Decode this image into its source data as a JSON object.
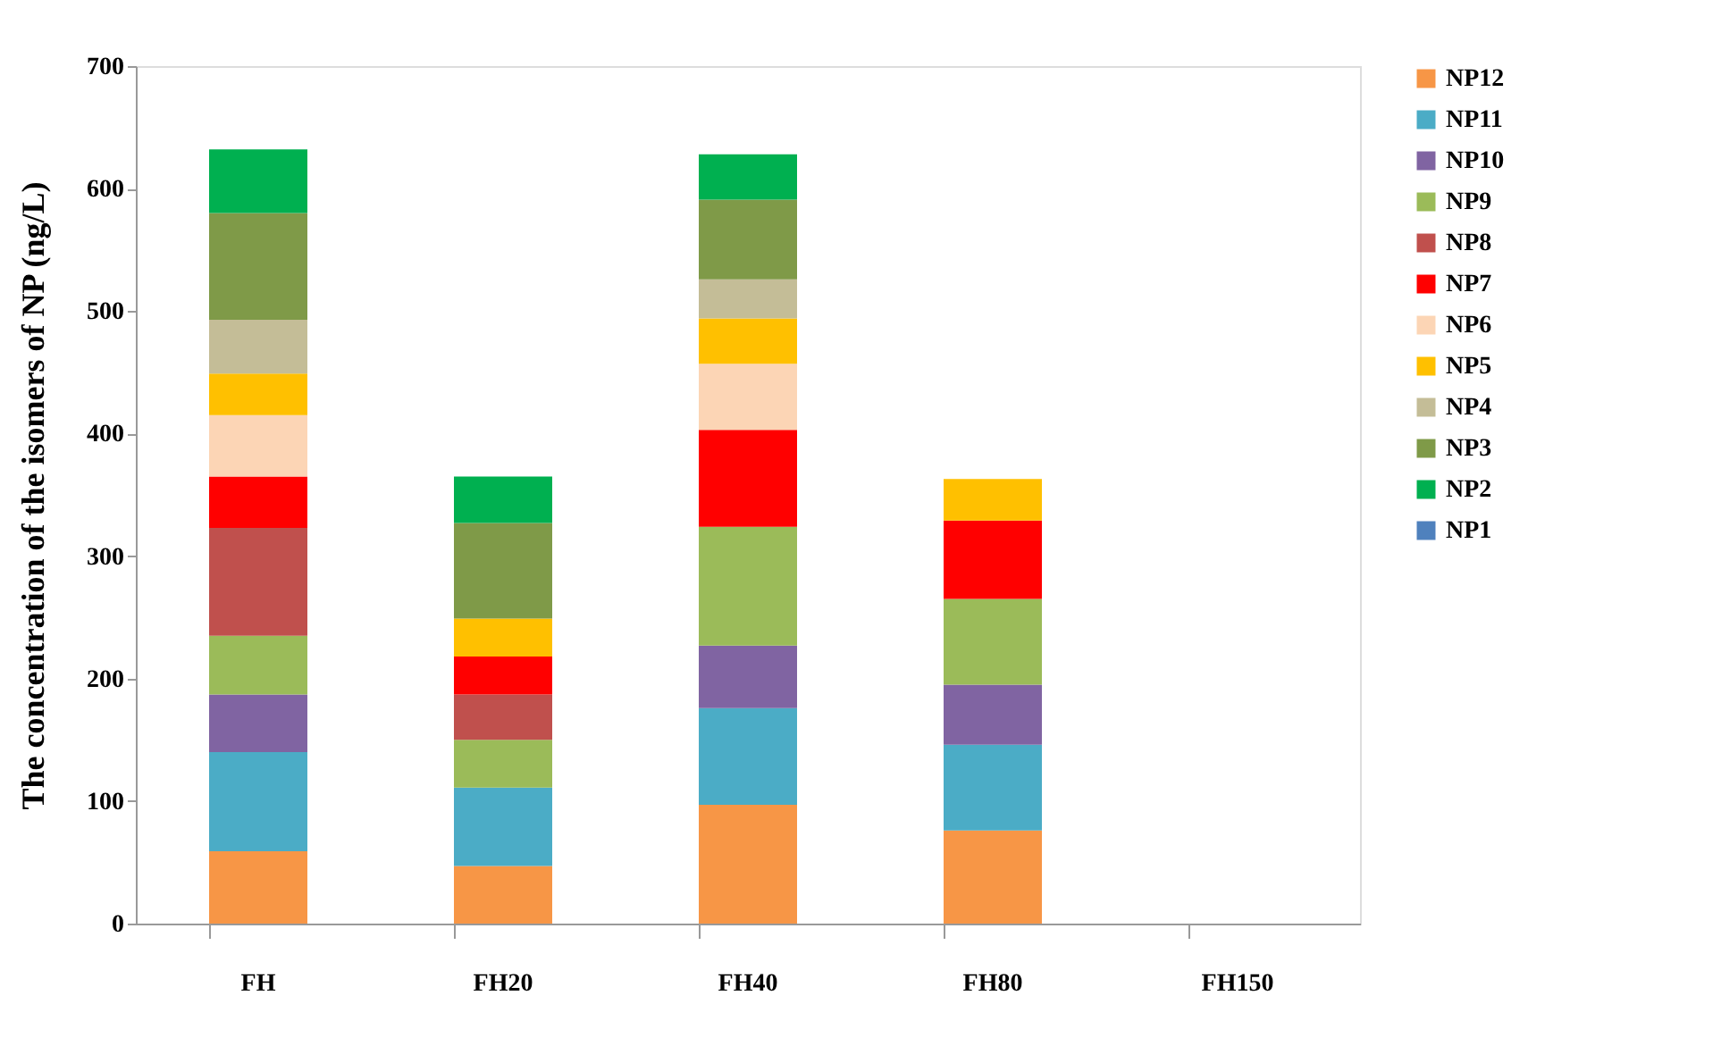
{
  "chart_data": {
    "type": "bar",
    "stacked": true,
    "ylabel": "The concentration of the isomers of NP  (ng/L)",
    "categories": [
      "FH",
      "FH20",
      "FH40",
      "FH80",
      "FH150"
    ],
    "series": [
      {
        "name": "NP12",
        "color": "#f79646",
        "values": [
          59,
          47,
          97,
          76,
          0
        ]
      },
      {
        "name": "NP11",
        "color": "#4bacc6",
        "values": [
          81,
          64,
          79,
          70,
          0
        ]
      },
      {
        "name": "NP10",
        "color": "#8064a2",
        "values": [
          47,
          0,
          51,
          49,
          0
        ]
      },
      {
        "name": "NP9",
        "color": "#9bbb59",
        "values": [
          48,
          39,
          97,
          70,
          0
        ]
      },
      {
        "name": "NP8",
        "color": "#c0504d",
        "values": [
          88,
          37,
          0,
          0,
          0
        ]
      },
      {
        "name": "NP7",
        "color": "#ff0000",
        "values": [
          42,
          31,
          79,
          64,
          0
        ]
      },
      {
        "name": "NP6",
        "color": "#fcd5b5",
        "values": [
          50,
          0,
          54,
          0,
          0
        ]
      },
      {
        "name": "NP5",
        "color": "#ffc000",
        "values": [
          34,
          31,
          37,
          34,
          0
        ]
      },
      {
        "name": "NP4",
        "color": "#c4bd97",
        "values": [
          44,
          0,
          32,
          0,
          0
        ]
      },
      {
        "name": "NP3",
        "color": "#7f9a48",
        "values": [
          87,
          78,
          65,
          0,
          0
        ]
      },
      {
        "name": "NP2",
        "color": "#00b050",
        "values": [
          52,
          38,
          37,
          0,
          0
        ]
      },
      {
        "name": "NP1",
        "color": "#4f81bd",
        "values": [
          0,
          0,
          0,
          0,
          0
        ]
      }
    ],
    "ylim": [
      0,
      700
    ],
    "yticks": [
      0,
      100,
      200,
      300,
      400,
      500,
      600,
      700
    ],
    "grid": false,
    "legend": "top right"
  }
}
